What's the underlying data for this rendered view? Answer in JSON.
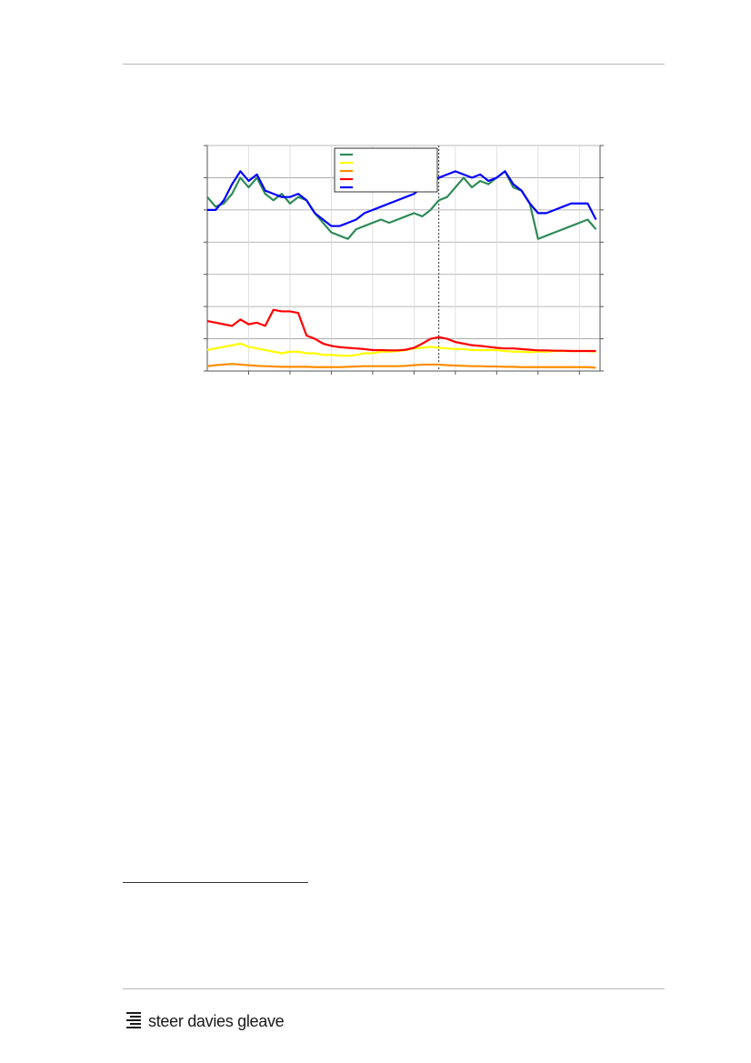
{
  "chart_data": {
    "type": "line",
    "title": "",
    "xlabel": "",
    "ylabel": "",
    "x": [
      0,
      2,
      4,
      6,
      8,
      10,
      12,
      14,
      16,
      18,
      20,
      22,
      24,
      26,
      28,
      30,
      32,
      34,
      36,
      38,
      40,
      42,
      44,
      46,
      48,
      50,
      52,
      54,
      56,
      58,
      60,
      62,
      64,
      66,
      68,
      70,
      72,
      74,
      76,
      78,
      80,
      82,
      84,
      86,
      88,
      90,
      92,
      94
    ],
    "xlim": [
      0,
      95
    ],
    "ylim": [
      0,
      7
    ],
    "grid": true,
    "divider_x": 56,
    "legend_position": "top-center",
    "series": [
      {
        "color": "#2e8b57",
        "values": [
          5.4,
          5.1,
          5.2,
          5.5,
          6.0,
          5.7,
          6.0,
          5.5,
          5.3,
          5.5,
          5.2,
          5.4,
          5.3,
          4.9,
          4.6,
          4.3,
          4.2,
          4.1,
          4.4,
          4.5,
          4.6,
          4.7,
          4.6,
          4.7,
          4.8,
          4.9,
          4.8,
          5.0,
          5.3,
          5.4,
          5.7,
          6.0,
          5.7,
          5.9,
          5.8,
          6.0,
          6.2,
          5.7,
          5.6,
          5.2,
          4.1,
          4.2,
          4.3,
          4.4,
          4.5,
          4.6,
          4.7,
          4.4
        ]
      },
      {
        "color": "#ffff00",
        "values": [
          0.65,
          0.7,
          0.75,
          0.8,
          0.85,
          0.75,
          0.7,
          0.65,
          0.6,
          0.55,
          0.6,
          0.6,
          0.55,
          0.55,
          0.5,
          0.5,
          0.48,
          0.47,
          0.5,
          0.55,
          0.55,
          0.6,
          0.6,
          0.62,
          0.65,
          0.7,
          0.72,
          0.75,
          0.72,
          0.7,
          0.68,
          0.68,
          0.65,
          0.65,
          0.65,
          0.65,
          0.62,
          0.6,
          0.6,
          0.58,
          0.6,
          0.6,
          0.62,
          0.62,
          0.62,
          0.62,
          0.62,
          0.6
        ]
      },
      {
        "color": "#ff8c00",
        "values": [
          0.15,
          0.18,
          0.2,
          0.22,
          0.2,
          0.18,
          0.16,
          0.15,
          0.14,
          0.13,
          0.13,
          0.13,
          0.13,
          0.12,
          0.12,
          0.12,
          0.12,
          0.13,
          0.14,
          0.15,
          0.15,
          0.15,
          0.15,
          0.15,
          0.16,
          0.18,
          0.2,
          0.2,
          0.2,
          0.18,
          0.17,
          0.16,
          0.15,
          0.15,
          0.14,
          0.14,
          0.13,
          0.13,
          0.12,
          0.12,
          0.12,
          0.12,
          0.12,
          0.12,
          0.12,
          0.12,
          0.12,
          0.1
        ]
      },
      {
        "color": "#ff0000",
        "values": [
          1.55,
          1.5,
          1.45,
          1.4,
          1.6,
          1.45,
          1.5,
          1.4,
          1.9,
          1.85,
          1.85,
          1.8,
          1.1,
          1.0,
          0.85,
          0.78,
          0.74,
          0.72,
          0.7,
          0.68,
          0.65,
          0.65,
          0.64,
          0.64,
          0.66,
          0.72,
          0.85,
          1.0,
          1.05,
          1.0,
          0.9,
          0.85,
          0.8,
          0.78,
          0.75,
          0.72,
          0.7,
          0.7,
          0.68,
          0.66,
          0.64,
          0.64,
          0.63,
          0.63,
          0.62,
          0.62,
          0.62,
          0.62
        ]
      },
      {
        "color": "#0000ff",
        "values": [
          5.0,
          5.0,
          5.3,
          5.8,
          6.2,
          5.9,
          6.1,
          5.6,
          5.5,
          5.4,
          5.4,
          5.5,
          5.3,
          4.9,
          4.7,
          4.5,
          4.5,
          4.6,
          4.7,
          4.9,
          5.0,
          5.1,
          5.2,
          5.3,
          5.4,
          5.5,
          5.7,
          5.9,
          6.0,
          6.1,
          6.2,
          6.1,
          6.0,
          6.1,
          5.9,
          6.0,
          6.2,
          5.8,
          5.6,
          5.2,
          4.9,
          4.9,
          5.0,
          5.1,
          5.2,
          5.2,
          5.2,
          4.7
        ]
      }
    ]
  },
  "footer": {
    "logo_text": "steer davies gleave"
  }
}
